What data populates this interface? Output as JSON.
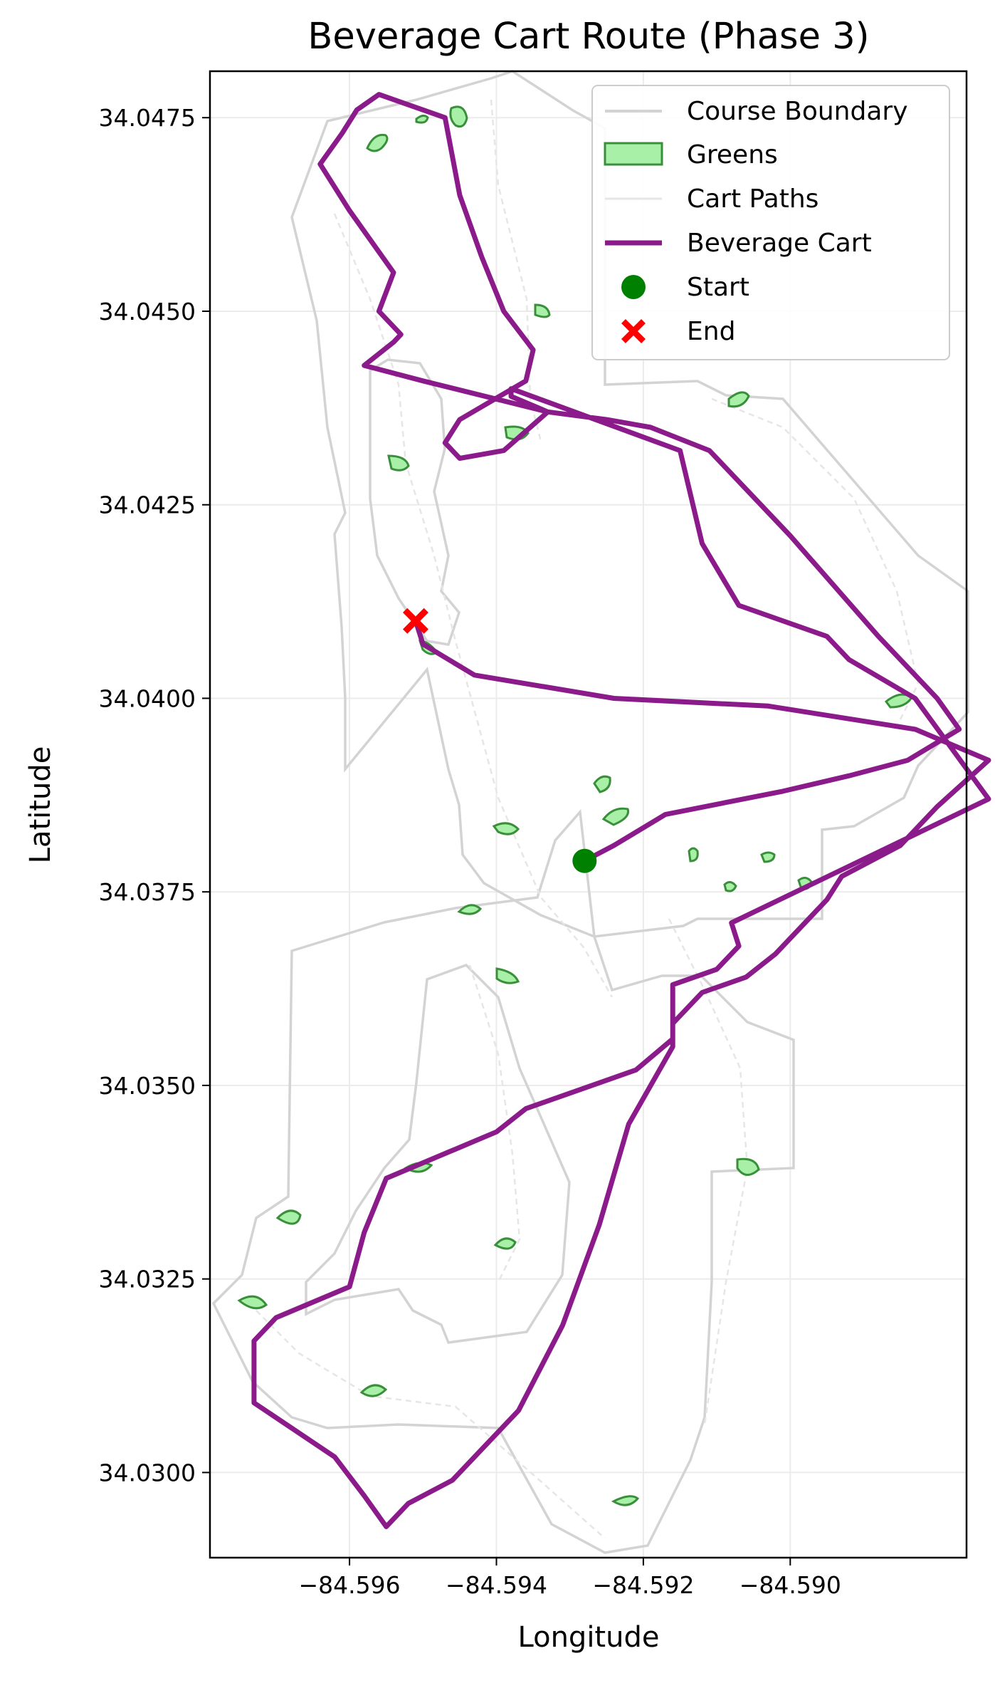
{
  "chart_data": {
    "type": "line",
    "title": "Beverage Cart Route (Phase 3)",
    "xlabel": "Longitude",
    "ylabel": "Latitude",
    "xlim": [
      -84.5979,
      -84.5876
    ],
    "ylim": [
      34.0289,
      34.0481
    ],
    "xticks": [
      {
        "value": -84.596,
        "label": "−84.596"
      },
      {
        "value": -84.594,
        "label": "−84.594"
      },
      {
        "value": -84.592,
        "label": "−84.592"
      },
      {
        "value": -84.59,
        "label": "−84.590"
      }
    ],
    "yticks": [
      {
        "value": 34.03,
        "label": "34.0300"
      },
      {
        "value": 34.0325,
        "label": "34.0325"
      },
      {
        "value": 34.035,
        "label": "34.0350"
      },
      {
        "value": 34.0375,
        "label": "34.0375"
      },
      {
        "value": 34.04,
        "label": "34.0400"
      },
      {
        "value": 34.0425,
        "label": "34.0425"
      },
      {
        "value": 34.045,
        "label": "34.0450"
      },
      {
        "value": 34.0475,
        "label": "34.0475"
      }
    ],
    "grid": true,
    "legend_position": "upper-right",
    "legend": [
      {
        "key": "boundary",
        "label": "Course Boundary"
      },
      {
        "key": "greens",
        "label": "Greens"
      },
      {
        "key": "paths",
        "label": "Cart Paths"
      },
      {
        "key": "cart",
        "label": "Beverage Cart"
      },
      {
        "key": "start",
        "label": "Start"
      },
      {
        "key": "end",
        "label": "End"
      }
    ],
    "colors": {
      "boundary": "#d3d3d3",
      "greens_fill": "#a8f0a8",
      "greens_edge": "#3a8f3a",
      "paths": "#e6e6e6",
      "cart": "#8b1a8b",
      "start": "#008000",
      "end": "#ff0000",
      "grid": "#ebebeb"
    },
    "beverage_cart": {
      "x": [
        -84.5928,
        -84.5924,
        -84.5917,
        -84.5901,
        -84.5892,
        -84.5884,
        -84.5877,
        -84.588,
        -84.5888,
        -84.59,
        -84.5911,
        -84.5919,
        -84.5925,
        -84.5933,
        -84.595,
        -84.5958,
        -84.5954,
        -84.5953,
        -84.5956,
        -84.5954,
        -84.596,
        -84.5964,
        -84.5961,
        -84.5959,
        -84.5956,
        -84.5947,
        -84.5945,
        -84.5942,
        -84.5939,
        -84.5935,
        -84.5936,
        -84.5945,
        -84.5947,
        -84.5945,
        -84.5939,
        -84.5933,
        -84.5938,
        -84.5938,
        -84.5915,
        -84.5912,
        -84.5907,
        -84.5895,
        -84.5892,
        -84.5883,
        -84.5873,
        -84.5908,
        -84.5907,
        -84.591,
        -84.5916,
        -84.5916,
        -84.5922,
        -84.5926,
        -84.5931,
        -84.5937,
        -84.5946,
        -84.5952,
        -84.5955,
        -84.5958,
        -84.5962,
        -84.5973,
        -84.5973,
        -84.597,
        -84.596,
        -84.5958,
        -84.5955,
        -84.594,
        -84.5936,
        -84.5921,
        -84.5916,
        -84.5916,
        -84.5912,
        -84.5906,
        -84.5902,
        -84.5897,
        -84.5895,
        -84.5893,
        -84.5885,
        -84.588,
        -84.5873,
        -84.5883,
        -84.5903,
        -84.5924,
        -84.5943,
        -84.595,
        -84.5951
      ],
      "y": [
        34.0379,
        34.0381,
        34.0385,
        34.0388,
        34.039,
        34.0392,
        34.0396,
        34.04,
        34.0408,
        34.0421,
        34.0432,
        34.0435,
        34.0436,
        34.0437,
        34.0441,
        34.0443,
        34.0446,
        34.0447,
        34.045,
        34.0455,
        34.0463,
        34.0469,
        34.0473,
        34.0476,
        34.0478,
        34.0475,
        34.0465,
        34.0457,
        34.045,
        34.0445,
        34.0441,
        34.0436,
        34.0433,
        34.0431,
        34.0432,
        34.0437,
        34.0439,
        34.044,
        34.0432,
        34.042,
        34.0412,
        34.0408,
        34.0405,
        34.04,
        34.0387,
        34.0371,
        34.0368,
        34.0365,
        34.0363,
        34.0355,
        34.0345,
        34.0332,
        34.0319,
        34.0308,
        34.0299,
        34.0296,
        34.0293,
        34.0297,
        34.0302,
        34.0309,
        34.0317,
        34.032,
        34.0324,
        34.0331,
        34.0338,
        34.0344,
        34.0347,
        34.0352,
        34.0356,
        34.0358,
        34.0362,
        34.0364,
        34.0367,
        34.0372,
        34.0374,
        34.0377,
        34.0381,
        34.0386,
        34.0392,
        34.0396,
        34.0399,
        34.04,
        34.0403,
        34.0407,
        34.041
      ]
    }
  }
}
